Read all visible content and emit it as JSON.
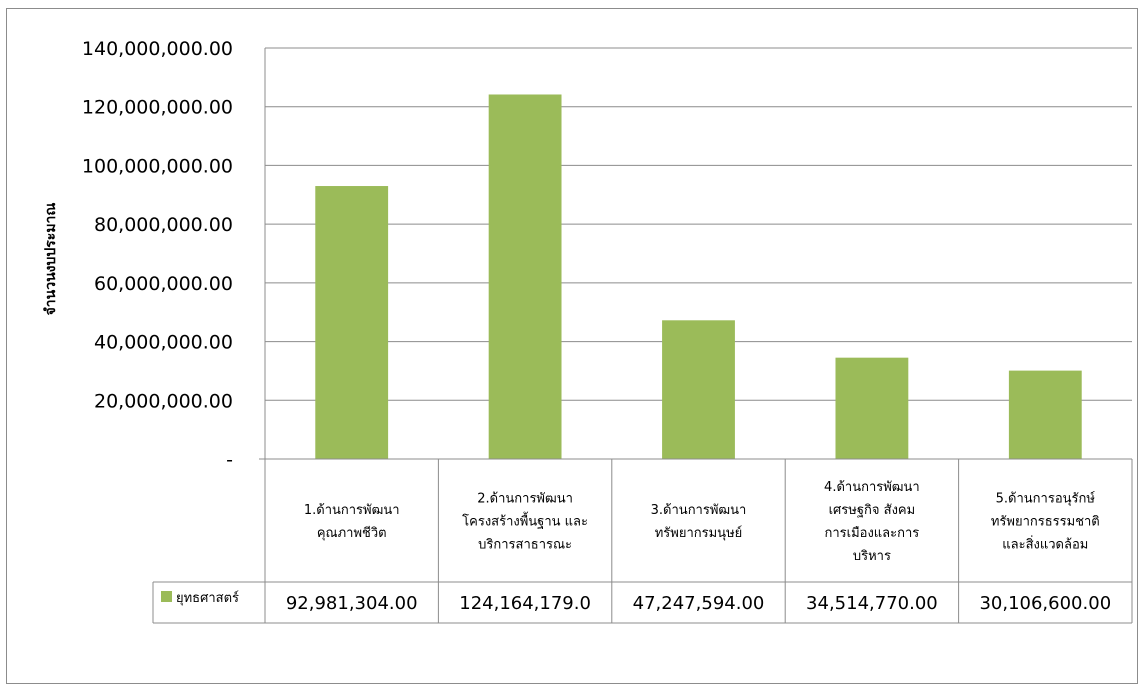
{
  "chart_data": {
    "type": "bar",
    "ylabel": "จำนวนงบประมาณ",
    "ylim": [
      0,
      140000000
    ],
    "yticks": [
      "-",
      "20,000,000.00",
      "40,000,000.00",
      "60,000,000.00",
      "80,000,000.00",
      "100,000,000.00",
      "120,000,000.00",
      "140,000,000.00"
    ],
    "categories": [
      [
        "1.ด้านการพัฒนา",
        "คุณภาพชีวิต"
      ],
      [
        "2.ด้านการพัฒนา",
        "โครงสร้างพื้นฐาน และ",
        "บริการสาธารณะ"
      ],
      [
        "3.ด้านการพัฒนา",
        "ทรัพยากรมนุษย์"
      ],
      [
        "4.ด้านการพัฒนา",
        "เศรษฐกิจ สังคม",
        "การเมืองและการ",
        "บริหาร"
      ],
      [
        "5.ด้านการอนุรักษ์",
        "ทรัพยากรธรรมชาติ",
        "และสิ่งแวดล้อม"
      ]
    ],
    "series": [
      {
        "name": "ยุทธศาสตร์",
        "color": "#9bbb59",
        "values": [
          92981304,
          124164179,
          47247594,
          34514770,
          30106600
        ],
        "value_labels": [
          "92,981,304.00",
          "124,164,179.0",
          "47,247,594.00",
          "34,514,770.00",
          "30,106,600.00"
        ]
      }
    ],
    "grid": true,
    "legend": "data-table-left"
  }
}
